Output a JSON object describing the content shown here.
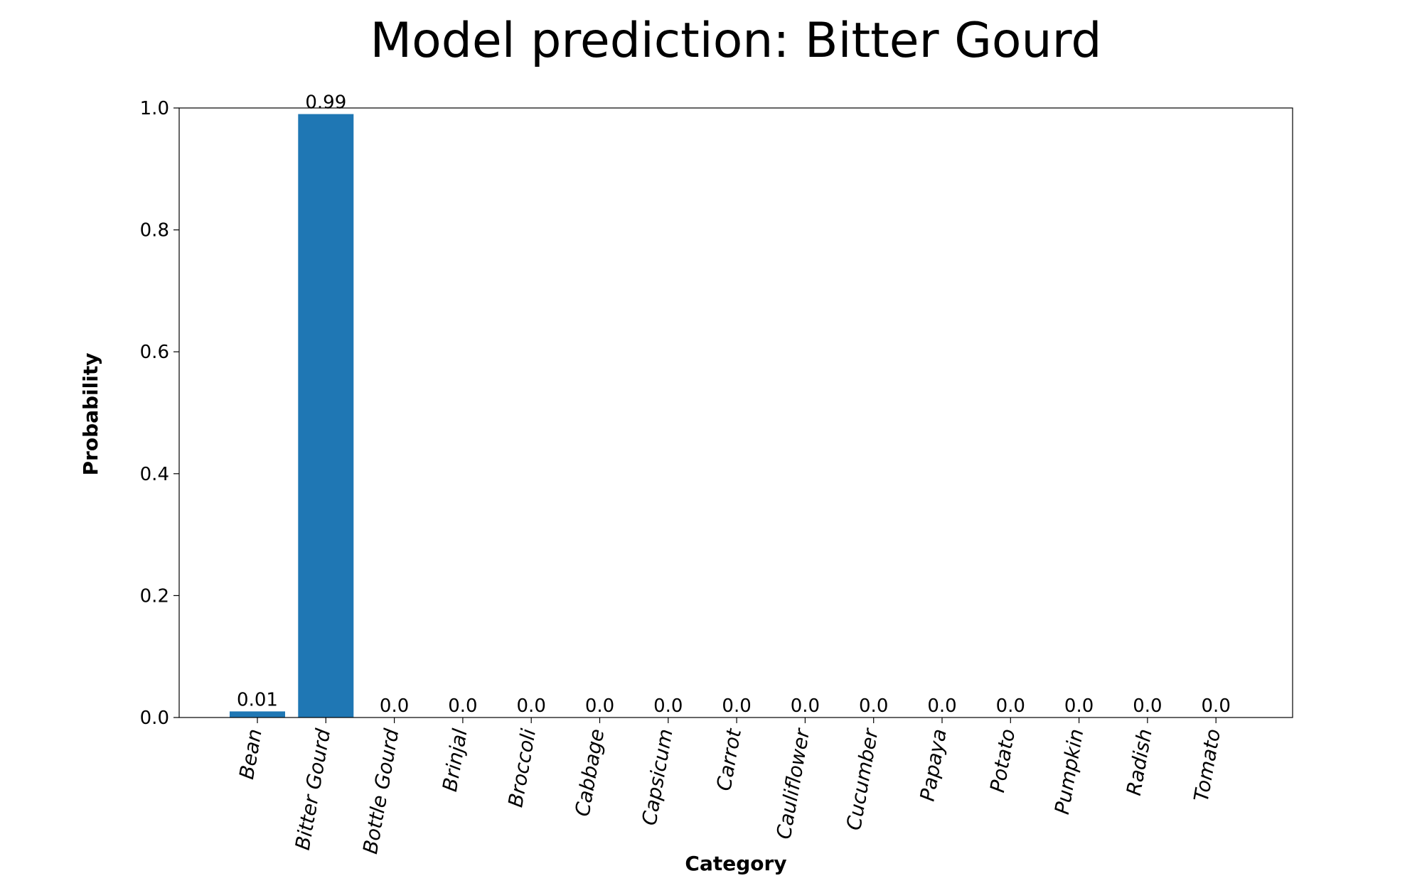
{
  "chart_data": {
    "type": "bar",
    "title": "Model prediction: Bitter Gourd",
    "xlabel": "Category",
    "ylabel": "Probability",
    "categories": [
      "Bean",
      "Bitter Gourd",
      "Bottle Gourd",
      "Brinjal",
      "Broccoli",
      "Cabbage",
      "Capsicum",
      "Carrot",
      "Cauliflower",
      "Cucumber",
      "Papaya",
      "Potato",
      "Pumpkin",
      "Radish",
      "Tomato"
    ],
    "values": [
      0.01,
      0.99,
      0.0,
      0.0,
      0.0,
      0.0,
      0.0,
      0.0,
      0.0,
      0.0,
      0.0,
      0.0,
      0.0,
      0.0,
      0.0
    ],
    "value_labels": [
      "0.01",
      "0.99",
      "0.0",
      "0.0",
      "0.0",
      "0.0",
      "0.0",
      "0.0",
      "0.0",
      "0.0",
      "0.0",
      "0.0",
      "0.0",
      "0.0",
      "0.0"
    ],
    "ylim": [
      0,
      1.0
    ],
    "yticks": [
      "0.0",
      "0.2",
      "0.4",
      "0.6",
      "0.8",
      "1.0"
    ],
    "grid": false,
    "bar_color": "#1f77b4"
  }
}
